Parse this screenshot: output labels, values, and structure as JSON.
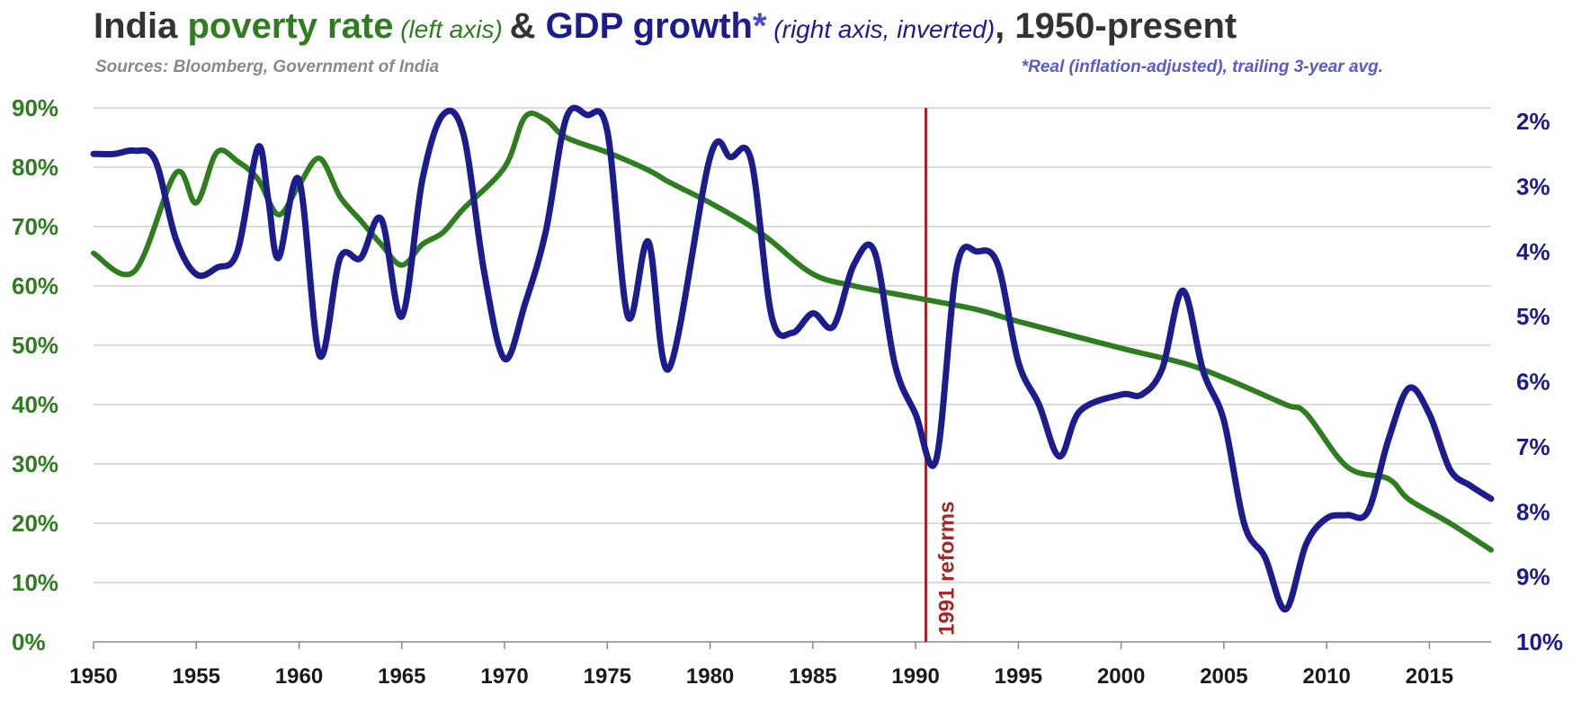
{
  "title": {
    "part1": "India ",
    "part2": "poverty rate",
    "part3": " (left axis) ",
    "part4": "& ",
    "part5": "GDP growth",
    "part6": "*",
    "part7": " (right axis, inverted)",
    "part8": ", 1950-present"
  },
  "sources": "Sources:  Bloomberg, Government of India",
  "footnote": "*Real (inflation-adjusted), trailing 3-year avg.",
  "colors": {
    "poverty": "#2e7d1f",
    "gdp": "#1c1c8c",
    "reform_line": "#a52626",
    "grid": "#c8c8c8",
    "title_dark": "#333333"
  },
  "chart_data": {
    "type": "line",
    "xlim": [
      1950,
      2018
    ],
    "x_ticks": [
      "1950",
      "1955",
      "1960",
      "1965",
      "1970",
      "1975",
      "1980",
      "1985",
      "1990",
      "1995",
      "2000",
      "2005",
      "2010",
      "2015"
    ],
    "left_axis": {
      "ylim": [
        0,
        90
      ],
      "ticks": [
        "0%",
        "10%",
        "20%",
        "30%",
        "40%",
        "50%",
        "60%",
        "70%",
        "80%",
        "90%"
      ]
    },
    "right_axis": {
      "ylim": [
        2,
        10
      ],
      "inverted": true,
      "ticks": [
        "2%",
        "3%",
        "4%",
        "5%",
        "6%",
        "7%",
        "8%",
        "9%",
        "10%"
      ]
    },
    "annotation": {
      "x": 1990.5,
      "label": "1991 reforms"
    },
    "series": [
      {
        "axis": "left",
        "x": [
          1950,
          1952,
          1954,
          1955,
          1956,
          1957,
          1958,
          1959,
          1960,
          1961,
          1962,
          1963,
          1964,
          1965,
          1966,
          1967,
          1968,
          1970,
          1971,
          1972,
          1973,
          1975,
          1977,
          1978,
          1980,
          1982,
          1983,
          1985,
          1987,
          1990,
          1993,
          1995,
          2000,
          2003,
          2005,
          2008,
          2009,
          2011,
          2013,
          2014,
          2016,
          2018
        ],
        "y": [
          65.5,
          62.5,
          79,
          74,
          82.5,
          81,
          78,
          72,
          77,
          81.5,
          75,
          71,
          67,
          63.5,
          67,
          69,
          73,
          80,
          88.5,
          88,
          85,
          82.5,
          79.5,
          77.5,
          74,
          70,
          67.5,
          62,
          60,
          58,
          56,
          54,
          49.5,
          47,
          44.5,
          40,
          38.5,
          29.5,
          27.5,
          24,
          20,
          15.5
        ]
      },
      {
        "axis": "right",
        "x": [
          1950,
          1951,
          1952,
          1953,
          1954,
          1955,
          1956,
          1957,
          1958,
          1958.5,
          1959,
          1960,
          1961,
          1962,
          1963,
          1964,
          1965,
          1966,
          1967,
          1968,
          1969,
          1970,
          1971,
          1972,
          1973,
          1974,
          1975,
          1976,
          1977,
          1978,
          1980,
          1981,
          1982,
          1983,
          1984,
          1985,
          1986,
          1987,
          1988,
          1989,
          1990,
          1991,
          1992,
          1993,
          1994,
          1995,
          1996,
          1997,
          1998,
          2000,
          2001,
          2002,
          2003,
          2004,
          2005,
          2006,
          2007,
          2008,
          2009,
          2010,
          2011,
          2012,
          2013,
          2014,
          2015,
          2016,
          2017,
          2018
        ],
        "y": [
          2.5,
          2.5,
          2.45,
          2.6,
          3.8,
          4.35,
          4.25,
          4.0,
          2.4,
          3.2,
          4.1,
          2.9,
          5.6,
          4.1,
          4.1,
          3.5,
          5.0,
          2.9,
          1.9,
          2.2,
          4.3,
          5.65,
          4.8,
          3.7,
          1.95,
          1.9,
          2.15,
          5.0,
          3.85,
          5.8,
          2.55,
          2.55,
          2.6,
          5.0,
          5.25,
          4.95,
          5.15,
          4.2,
          4.0,
          5.75,
          6.5,
          7.2,
          4.25,
          4.0,
          4.2,
          5.7,
          6.35,
          7.15,
          6.45,
          6.2,
          6.2,
          5.8,
          4.6,
          5.85,
          6.6,
          8.2,
          8.7,
          9.5,
          8.5,
          8.1,
          8.05,
          8.0,
          6.9,
          6.1,
          6.5,
          7.35,
          7.6,
          7.8
        ]
      }
    ]
  }
}
